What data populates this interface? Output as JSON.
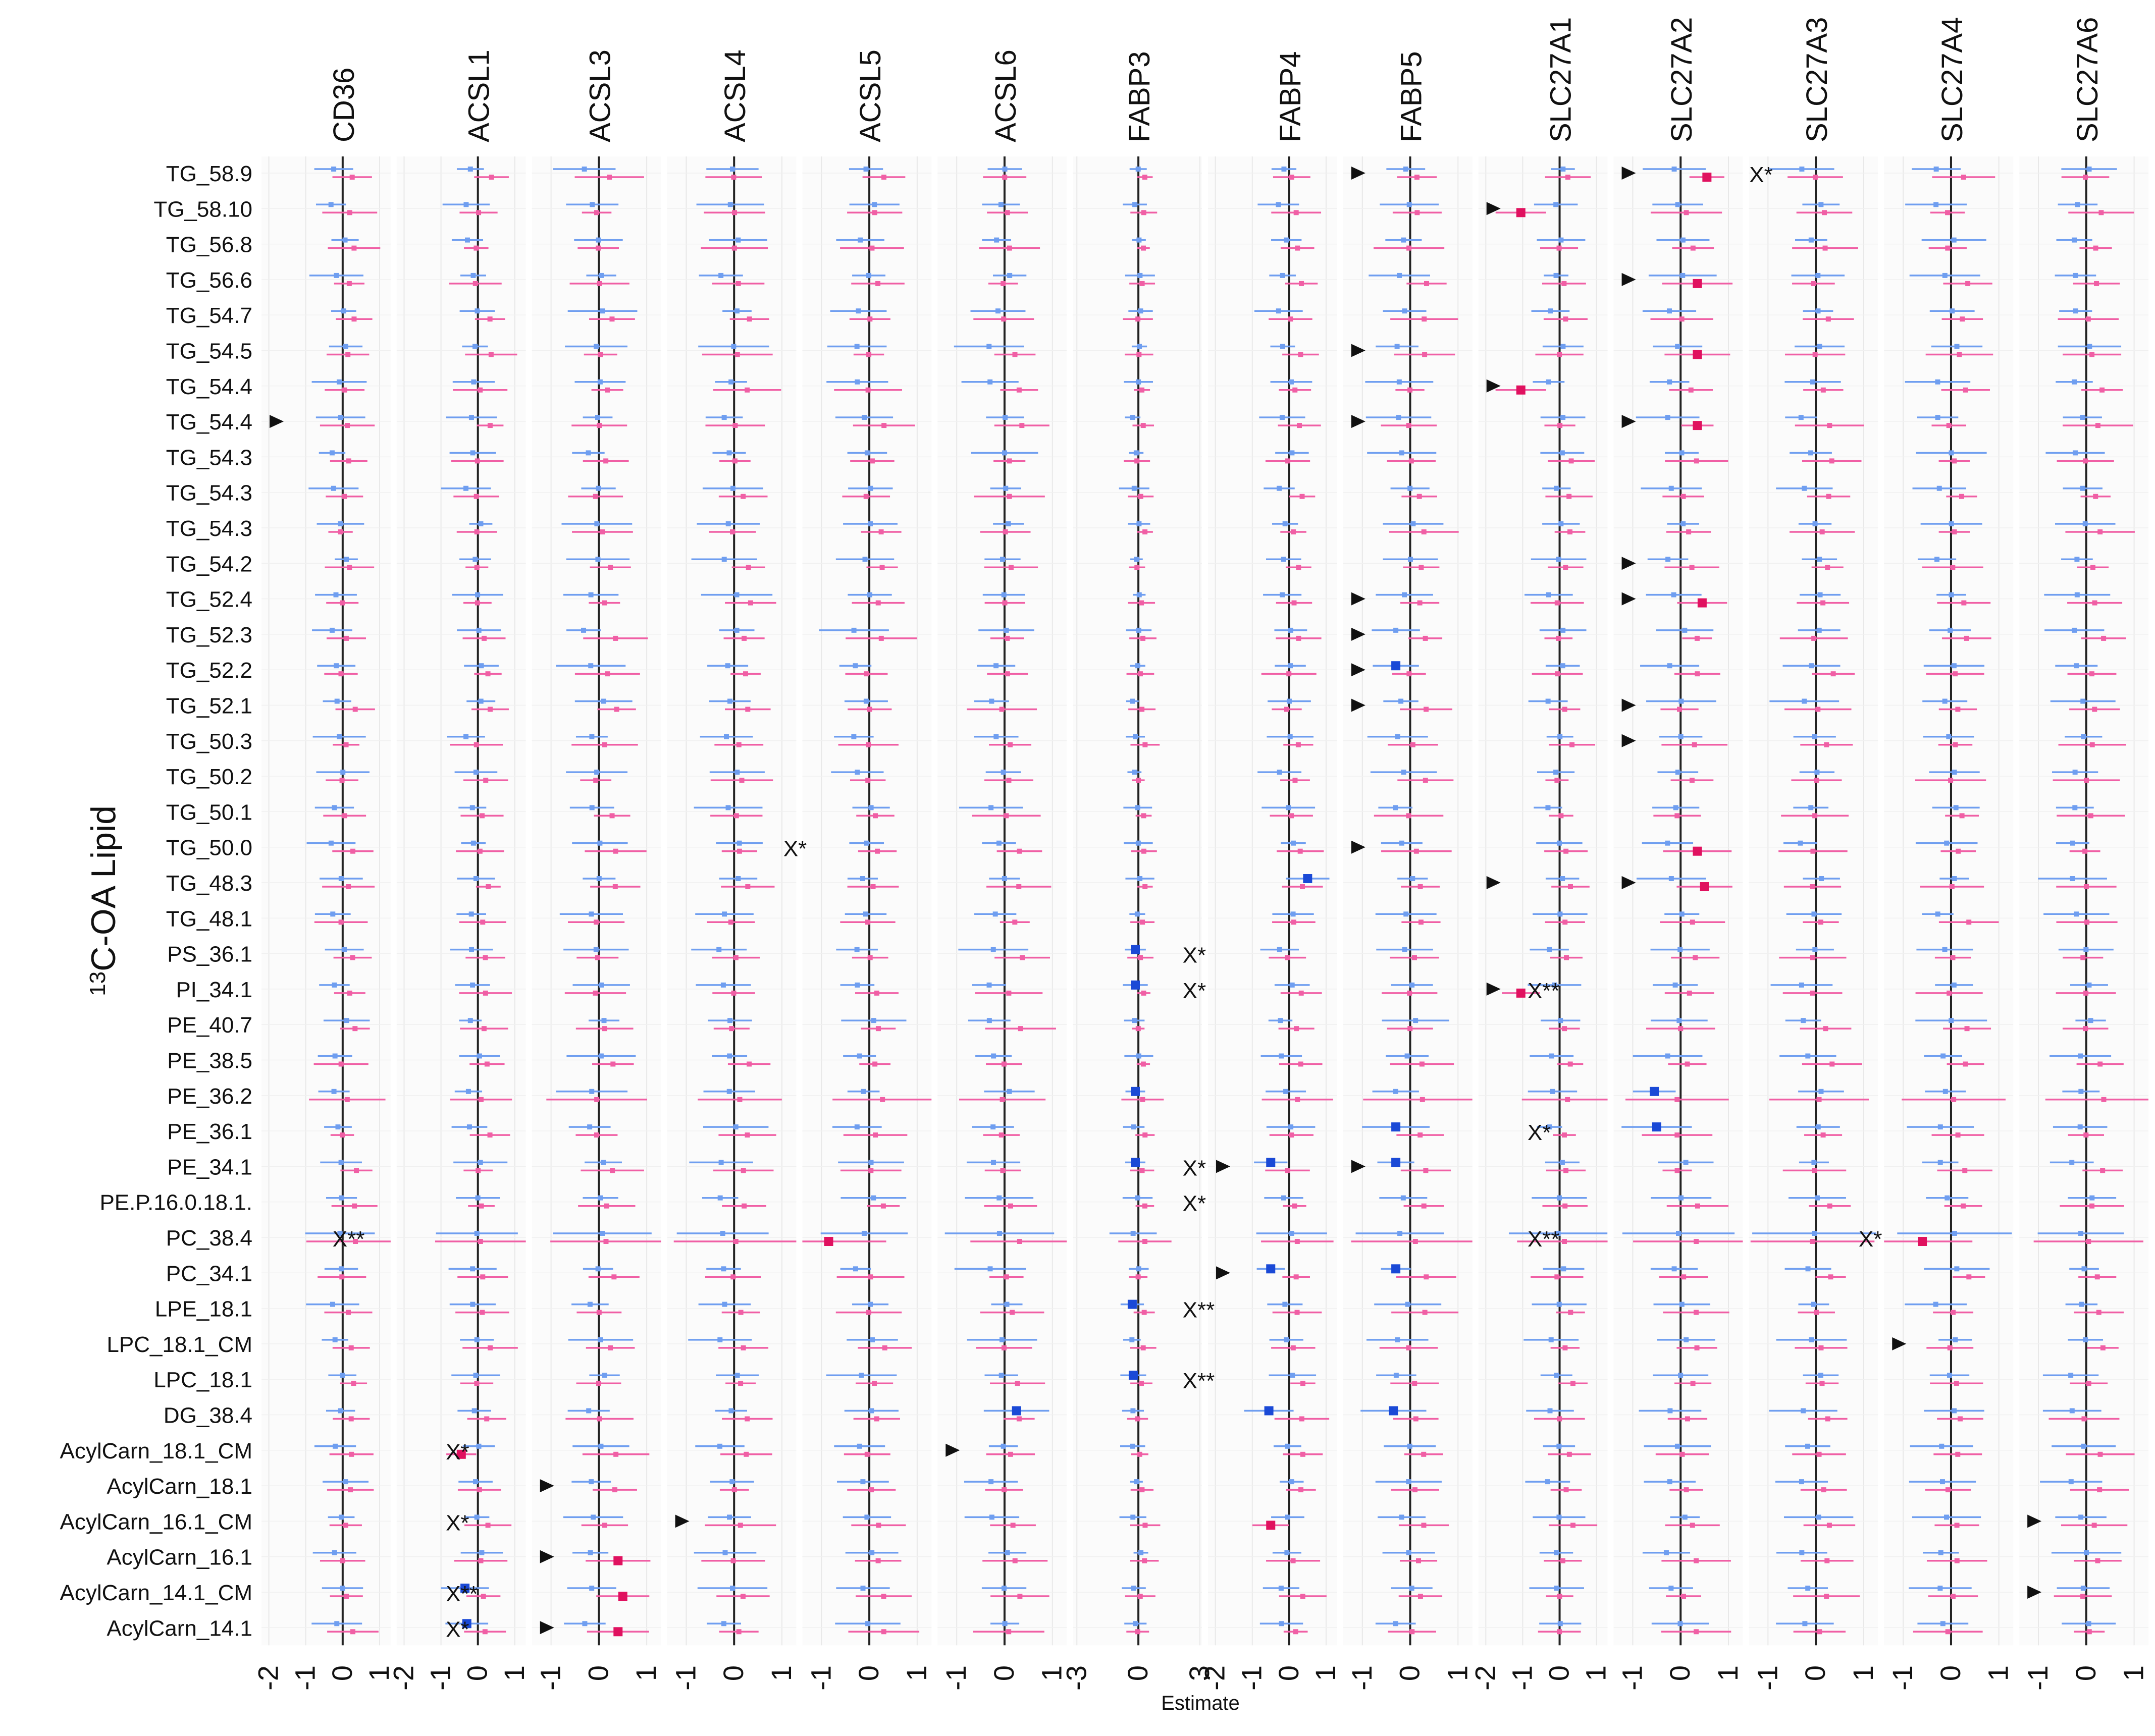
{
  "chart_data": {
    "type": "forest",
    "ylabel_sup": "13",
    "ylabel": "C-OA Lipid",
    "xlabel": "Estimate",
    "colors": {
      "group_a": "#6f9ef0",
      "group_b": "#f05fa5",
      "sig_a": "#1a49d6",
      "sig_b": "#e0115f",
      "axis": "#222222",
      "grid": "#e8e8e8"
    },
    "panels": [
      {
        "gene": "CD36",
        "xlim": [
          -2.2,
          1.3
        ],
        "ticks": [
          "-2",
          "-1",
          "0",
          "1"
        ]
      },
      {
        "gene": "ACSL1",
        "xlim": [
          -2.2,
          1.3
        ],
        "ticks": [
          "-2",
          "-1",
          "0",
          "1"
        ]
      },
      {
        "gene": "ACSL3",
        "xlim": [
          -1.4,
          1.3
        ],
        "ticks": [
          "-1",
          "0",
          "1"
        ]
      },
      {
        "gene": "ACSL4",
        "xlim": [
          -1.4,
          1.3
        ],
        "ticks": [
          "-1",
          "0",
          "1"
        ]
      },
      {
        "gene": "ACSL5",
        "xlim": [
          -1.4,
          1.3
        ],
        "ticks": [
          "-1",
          "0",
          "1"
        ]
      },
      {
        "gene": "ACSL6",
        "xlim": [
          -1.4,
          1.3
        ],
        "ticks": [
          "-1",
          "0",
          "1"
        ]
      },
      {
        "gene": "FABP3",
        "xlim": [
          -3.2,
          3.1
        ],
        "ticks": [
          "-3",
          "0",
          "3"
        ]
      },
      {
        "gene": "FABP4",
        "xlim": [
          -2.2,
          1.3
        ],
        "ticks": [
          "-2",
          "-1",
          "0",
          "1"
        ]
      },
      {
        "gene": "FABP5",
        "xlim": [
          -1.4,
          1.3
        ],
        "ticks": [
          "-1",
          "0",
          "1"
        ]
      },
      {
        "gene": "SLC27A1",
        "xlim": [
          -2.2,
          1.3
        ],
        "ticks": [
          "-2",
          "-1",
          "0",
          "1"
        ]
      },
      {
        "gene": "SLC27A2",
        "xlim": [
          -1.4,
          1.3
        ],
        "ticks": [
          "-1",
          "0",
          "1"
        ]
      },
      {
        "gene": "SLC27A3",
        "xlim": [
          -1.4,
          1.3
        ],
        "ticks": [
          "-1",
          "0",
          "1"
        ]
      },
      {
        "gene": "SLC27A4",
        "xlim": [
          -1.4,
          1.3
        ],
        "ticks": [
          "-1",
          "0",
          "1"
        ]
      },
      {
        "gene": "SLC27A6",
        "xlim": [
          -1.4,
          1.3
        ],
        "ticks": [
          "-1",
          "0",
          "1"
        ]
      }
    ],
    "lipids": [
      "TG_58.9",
      "TG_58.10",
      "TG_56.8",
      "TG_56.6",
      "TG_54.7",
      "TG_54.5",
      "TG_54.4",
      "TG_54.4",
      "TG_54.3",
      "TG_54.3",
      "TG_54.3",
      "TG_54.2",
      "TG_52.4",
      "TG_52.3",
      "TG_52.2",
      "TG_52.1",
      "TG_50.3",
      "TG_50.2",
      "TG_50.1",
      "TG_50.0",
      "TG_48.3",
      "TG_48.1",
      "PS_36.1",
      "PI_34.1",
      "PE_40.7",
      "PE_38.5",
      "PE_36.2",
      "PE_36.1",
      "PE_34.1",
      "PE.P.16.0.18.1.",
      "PC_38.4",
      "PC_34.1",
      "LPE_18.1",
      "LPC_18.1_CM",
      "LPC_18.1",
      "DG_38.4",
      "AcylCarn_18.1_CM",
      "AcylCarn_18.1",
      "AcylCarn_16.1_CM",
      "AcylCarn_16.1",
      "AcylCarn_14.1_CM",
      "AcylCarn_14.1"
    ],
    "significant_points": [
      {
        "panel": 1,
        "row": 36,
        "group": "b",
        "est": -0.45
      },
      {
        "panel": 1,
        "row": 40,
        "group": "a",
        "est": -0.35
      },
      {
        "panel": 1,
        "row": 41,
        "group": "a",
        "est": -0.3
      },
      {
        "panel": 2,
        "row": 39,
        "group": "b",
        "est": 0.4
      },
      {
        "panel": 2,
        "row": 40,
        "group": "b",
        "est": 0.5
      },
      {
        "panel": 2,
        "row": 41,
        "group": "b",
        "est": 0.4
      },
      {
        "panel": 4,
        "row": 30,
        "group": "b",
        "est": -0.85
      },
      {
        "panel": 5,
        "row": 35,
        "group": "a",
        "est": 0.25
      },
      {
        "panel": 6,
        "row": 22,
        "group": "a",
        "est": -0.15
      },
      {
        "panel": 6,
        "row": 23,
        "group": "a",
        "est": -0.15
      },
      {
        "panel": 6,
        "row": 26,
        "group": "a",
        "est": -0.15
      },
      {
        "panel": 6,
        "row": 28,
        "group": "a",
        "est": -0.15
      },
      {
        "panel": 6,
        "row": 32,
        "group": "a",
        "est": -0.3
      },
      {
        "panel": 6,
        "row": 34,
        "group": "a",
        "est": -0.25
      },
      {
        "panel": 7,
        "row": 20,
        "group": "a",
        "est": 0.5
      },
      {
        "panel": 7,
        "row": 28,
        "group": "a",
        "est": -0.5
      },
      {
        "panel": 7,
        "row": 31,
        "group": "a",
        "est": -0.5
      },
      {
        "panel": 7,
        "row": 35,
        "group": "a",
        "est": -0.55
      },
      {
        "panel": 7,
        "row": 38,
        "group": "b",
        "est": -0.5
      },
      {
        "panel": 8,
        "row": 14,
        "group": "a",
        "est": -0.3
      },
      {
        "panel": 8,
        "row": 27,
        "group": "a",
        "est": -0.3
      },
      {
        "panel": 8,
        "row": 28,
        "group": "a",
        "est": -0.3
      },
      {
        "panel": 8,
        "row": 31,
        "group": "a",
        "est": -0.3
      },
      {
        "panel": 8,
        "row": 35,
        "group": "a",
        "est": -0.35
      },
      {
        "panel": 9,
        "row": 1,
        "group": "b",
        "est": -1.05
      },
      {
        "panel": 9,
        "row": 6,
        "group": "b",
        "est": -1.05
      },
      {
        "panel": 9,
        "row": 23,
        "group": "b",
        "est": -1.05
      },
      {
        "panel": 10,
        "row": 0,
        "group": "b",
        "est": 0.55
      },
      {
        "panel": 10,
        "row": 3,
        "group": "b",
        "est": 0.35
      },
      {
        "panel": 10,
        "row": 5,
        "group": "b",
        "est": 0.35
      },
      {
        "panel": 10,
        "row": 7,
        "group": "b",
        "est": 0.35
      },
      {
        "panel": 10,
        "row": 12,
        "group": "b",
        "est": 0.45
      },
      {
        "panel": 10,
        "row": 19,
        "group": "b",
        "est": 0.35
      },
      {
        "panel": 10,
        "row": 20,
        "group": "b",
        "est": 0.5
      },
      {
        "panel": 10,
        "row": 26,
        "group": "a",
        "est": -0.55
      },
      {
        "panel": 10,
        "row": 27,
        "group": "a",
        "est": -0.5
      },
      {
        "panel": 12,
        "row": 30,
        "group": "b",
        "est": -0.6
      }
    ],
    "annotations": [
      {
        "panel": 0,
        "row": 30,
        "label": "X**",
        "pos": 0.55
      },
      {
        "panel": 1,
        "row": 36,
        "label": "X*",
        "pos": 0.38
      },
      {
        "panel": 1,
        "row": 38,
        "label": "X*",
        "pos": 0.38
      },
      {
        "panel": 1,
        "row": 40,
        "label": "X**",
        "pos": 0.38
      },
      {
        "panel": 1,
        "row": 41,
        "label": "X*",
        "pos": 0.38
      },
      {
        "panel": 3,
        "row": 19,
        "label": "X*",
        "pos": 0.9
      },
      {
        "panel": 6,
        "row": 22,
        "label": "X*",
        "pos": 0.85
      },
      {
        "panel": 6,
        "row": 23,
        "label": "X*",
        "pos": 0.85
      },
      {
        "panel": 6,
        "row": 28,
        "label": "X*",
        "pos": 0.85
      },
      {
        "panel": 6,
        "row": 29,
        "label": "X*",
        "pos": 0.85
      },
      {
        "panel": 6,
        "row": 32,
        "label": "X**",
        "pos": 0.85
      },
      {
        "panel": 6,
        "row": 34,
        "label": "X**",
        "pos": 0.85
      },
      {
        "panel": 9,
        "row": 23,
        "label": "X**",
        "pos": 0.38
      },
      {
        "panel": 9,
        "row": 27,
        "label": "X*",
        "pos": 0.38
      },
      {
        "panel": 9,
        "row": 30,
        "label": "X**",
        "pos": 0.38
      },
      {
        "panel": 10,
        "row": 0,
        "label": "X*",
        "pos": 1.05
      },
      {
        "panel": 11,
        "row": 30,
        "label": "X*",
        "pos": 0.85
      }
    ],
    "markers": [
      {
        "panel": 0,
        "row": 7
      },
      {
        "panel": 2,
        "row": 37
      },
      {
        "panel": 2,
        "row": 39
      },
      {
        "panel": 2,
        "row": 41
      },
      {
        "panel": 3,
        "row": 38
      },
      {
        "panel": 5,
        "row": 36
      },
      {
        "panel": 7,
        "row": 28
      },
      {
        "panel": 7,
        "row": 31
      },
      {
        "panel": 8,
        "row": 0
      },
      {
        "panel": 8,
        "row": 5
      },
      {
        "panel": 8,
        "row": 7
      },
      {
        "panel": 8,
        "row": 12
      },
      {
        "panel": 8,
        "row": 13
      },
      {
        "panel": 8,
        "row": 14
      },
      {
        "panel": 8,
        "row": 15
      },
      {
        "panel": 8,
        "row": 19
      },
      {
        "panel": 8,
        "row": 28
      },
      {
        "panel": 9,
        "row": 1
      },
      {
        "panel": 9,
        "row": 6
      },
      {
        "panel": 9,
        "row": 20
      },
      {
        "panel": 9,
        "row": 23
      },
      {
        "panel": 10,
        "row": 0
      },
      {
        "panel": 10,
        "row": 3
      },
      {
        "panel": 10,
        "row": 7
      },
      {
        "panel": 10,
        "row": 11
      },
      {
        "panel": 10,
        "row": 12
      },
      {
        "panel": 10,
        "row": 15
      },
      {
        "panel": 10,
        "row": 16
      },
      {
        "panel": 10,
        "row": 20
      },
      {
        "panel": 12,
        "row": 33
      },
      {
        "panel": 13,
        "row": 38
      },
      {
        "panel": 13,
        "row": 40
      }
    ]
  }
}
